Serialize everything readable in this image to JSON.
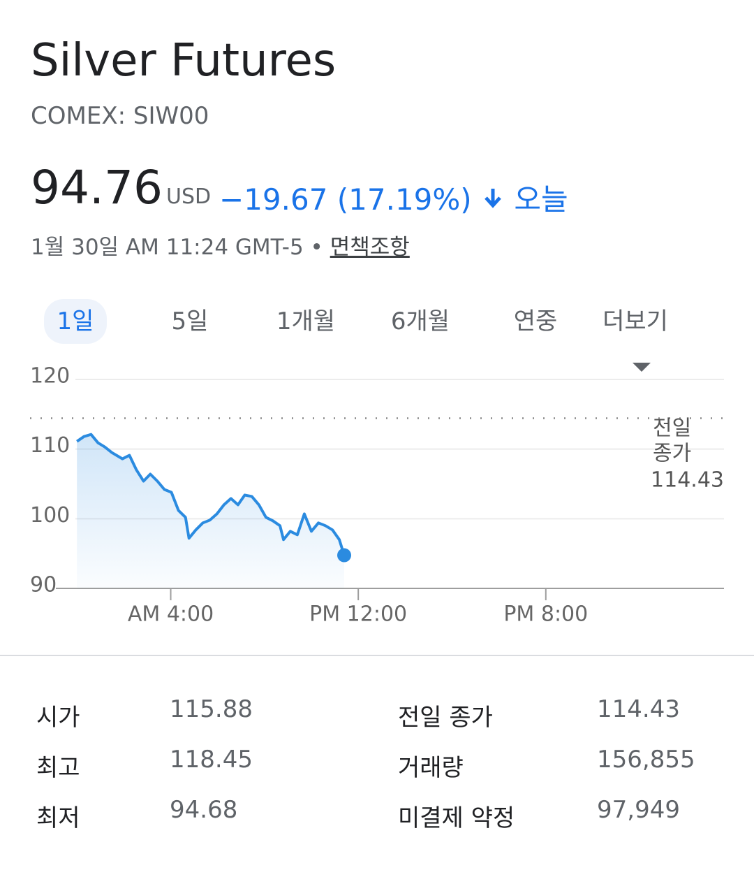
{
  "header": {
    "title": "Silver Futures",
    "symbol": "COMEX: SIW00"
  },
  "quote": {
    "price": "94.76",
    "currency": "USD",
    "change": "−19.67 (17.19%)",
    "period": "오늘",
    "timestamp": "1월 30일 AM 11:24 GMT-5",
    "separator": "•",
    "disclaimer": "면책조항"
  },
  "tabs": {
    "items": [
      "1일",
      "5일",
      "1개월",
      "6개월",
      "연중",
      "더보기"
    ],
    "selected": 0
  },
  "chart_data": {
    "type": "line",
    "x": [
      0,
      0.3,
      0.6,
      0.9,
      1.19,
      1.49,
      1.94,
      2.24,
      2.54,
      2.84,
      3.13,
      3.43,
      3.73,
      4.03,
      4.33,
      4.63,
      4.78,
      5.07,
      5.37,
      5.67,
      5.97,
      6.27,
      6.57,
      6.87,
      7.16,
      7.46,
      7.76,
      8.06,
      8.36,
      8.66,
      8.81,
      9.1,
      9.4,
      9.7,
      10,
      10.3,
      10.6,
      10.9,
      11.19,
      11.4
    ],
    "series": [
      {
        "name": "Silver Futures",
        "color": "#2b8be0",
        "values": [
          111.1,
          111.8,
          112.1,
          110.9,
          110.3,
          109.5,
          108.6,
          109.1,
          107,
          105.4,
          106.4,
          105.4,
          104.2,
          103.8,
          101.2,
          100.2,
          97.2,
          98.4,
          99.4,
          99.8,
          100.7,
          102,
          102.9,
          102,
          103.4,
          103.2,
          102,
          100.2,
          99.7,
          99,
          97,
          98.2,
          97.7,
          100.7,
          98.2,
          99.4,
          99,
          98.4,
          97,
          94.76
        ]
      }
    ],
    "xlim": [
      -0.9,
      27.6
    ],
    "xticks": [
      {
        "value": 4,
        "label": "AM 4:00"
      },
      {
        "value": 12,
        "label": "PM 12:00"
      },
      {
        "value": 20,
        "label": "PM 8:00"
      }
    ],
    "ylim": [
      90,
      120
    ],
    "yticks": [
      90,
      100,
      110,
      120
    ],
    "grid": true,
    "reference": {
      "label_lines": [
        "전일",
        "종가"
      ],
      "value": 114.43
    }
  },
  "stats": [
    [
      {
        "label": "시가",
        "value": "115.88"
      },
      {
        "label": "전일 종가",
        "value": "114.43"
      }
    ],
    [
      {
        "label": "최고",
        "value": "118.45"
      },
      {
        "label": "거래량",
        "value": "156,855"
      }
    ],
    [
      {
        "label": "최저",
        "value": "94.68"
      },
      {
        "label": "미결제 약정",
        "value": "97,949"
      }
    ]
  ]
}
